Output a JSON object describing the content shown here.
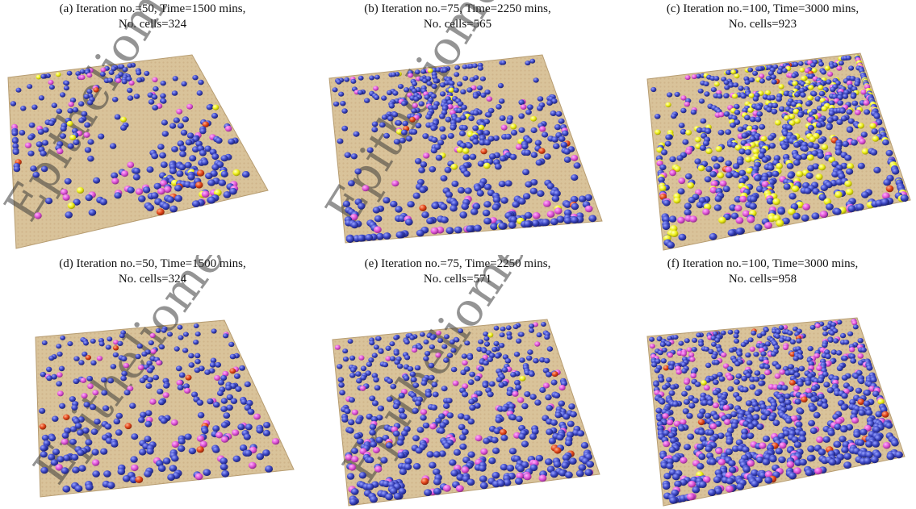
{
  "figure": {
    "panels": [
      {
        "id": "a",
        "caption_line1": "(a) Iteration no.=50, Time=1500 mins,",
        "caption_line2": "No. cells=324",
        "cells": 324,
        "watermark": "Epitheliome",
        "cell_mix": {
          "blue": 0.82,
          "magenta": 0.12,
          "yellow": 0.04,
          "red": 0.02
        },
        "clustered": true
      },
      {
        "id": "b",
        "caption_line1": "(b) Iteration no.=75, Time=2250 mins,",
        "caption_line2": "No. cells=565",
        "cells": 565,
        "watermark": "Epitheliome",
        "cell_mix": {
          "blue": 0.85,
          "magenta": 0.1,
          "yellow": 0.035,
          "red": 0.015
        },
        "clustered": true
      },
      {
        "id": "c",
        "caption_line1": "(c) Iteration no.=100, Time=3000 mins,",
        "caption_line2": "No. cells=923",
        "cells": 923,
        "watermark": "",
        "cell_mix": {
          "blue": 0.68,
          "magenta": 0.1,
          "yellow": 0.21,
          "red": 0.01
        },
        "clustered": true
      },
      {
        "id": "d",
        "caption_line1": "(d) Iteration no.=50, Time=1500 mins,",
        "caption_line2": "No. cells=324",
        "cells": 324,
        "watermark": "Epitheliome",
        "cell_mix": {
          "blue": 0.84,
          "magenta": 0.13,
          "yellow": 0.0,
          "red": 0.03
        },
        "clustered": false
      },
      {
        "id": "e",
        "caption_line1": "(e) Iteration no.=75, Time=2250 mins,",
        "caption_line2": "No. cells=571",
        "cells": 571,
        "watermark": "Epitheliome",
        "cell_mix": {
          "blue": 0.84,
          "magenta": 0.14,
          "yellow": 0.005,
          "red": 0.015
        },
        "clustered": false
      },
      {
        "id": "f",
        "caption_line1": "(f) Iteration no.=100, Time=3000 mins,",
        "caption_line2": "No. cells=958",
        "cells": 958,
        "watermark": "",
        "cell_mix": {
          "blue": 0.84,
          "magenta": 0.14,
          "yellow": 0.005,
          "red": 0.015
        },
        "clustered": false
      }
    ]
  },
  "colors": {
    "substrate": "#d9c39a",
    "substrate_dot": "#c9aa80",
    "cell_blue": "#3b45c2",
    "cell_blue_highlight": "#9aa4ff",
    "cell_magenta": "#e055d8",
    "cell_yellow": "#eef01a",
    "cell_red": "#e2451a"
  }
}
